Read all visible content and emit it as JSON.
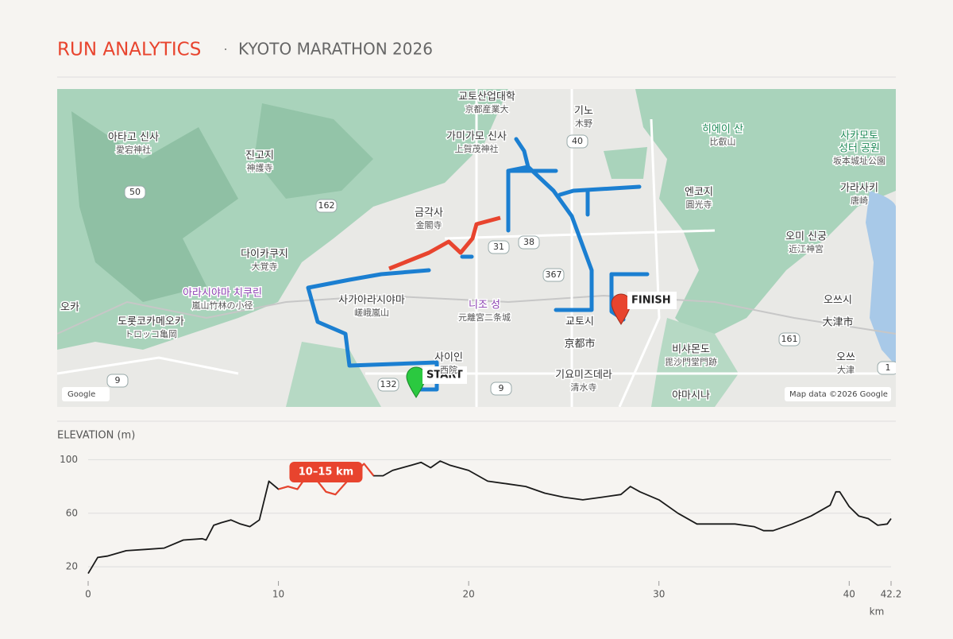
{
  "header": {
    "title": "RUN ANALYTICS",
    "separator": "·",
    "subtitle": "KYOTO MARATHON 2026"
  },
  "map": {
    "labels": [
      {
        "lines": [
          "교토산업대학",
          "京都産業大"
        ]
      },
      {
        "lines": [
          "기노",
          "木野"
        ]
      },
      {
        "lines": [
          "가미가모 신사",
          "上賀茂神社"
        ]
      },
      {
        "lines": [
          "아타고 신사",
          "愛宕神社"
        ]
      },
      {
        "lines": [
          "진고지",
          "神護寺"
        ]
      },
      {
        "lines": [
          "금각사",
          "金閣寺"
        ]
      },
      {
        "lines": [
          "다이카쿠지",
          "大覚寺"
        ]
      },
      {
        "lines": [
          "아라시야마 치쿠린",
          "嵐山竹林の小径"
        ]
      },
      {
        "lines": [
          "사가아라시야마",
          "嵯峨嵐山"
        ]
      },
      {
        "lines": [
          "니조 성",
          "元離宮二条城"
        ]
      },
      {
        "lines": [
          "교토시",
          "京都市"
        ]
      },
      {
        "lines": [
          "히에이 산",
          "比叡山"
        ]
      },
      {
        "lines": [
          "사카모토",
          "성터 공원",
          "坂本城址公園"
        ]
      },
      {
        "lines": [
          "엔코지",
          "圓光寺"
        ]
      },
      {
        "lines": [
          "가라사키",
          "唐崎"
        ]
      },
      {
        "lines": [
          "오미 신궁",
          "近江神宮"
        ]
      },
      {
        "lines": [
          "오쓰시",
          "大津市"
        ]
      },
      {
        "lines": [
          "비샤몬도",
          "毘沙門堂門跡"
        ]
      },
      {
        "lines": [
          "오쓰",
          "大津"
        ]
      },
      {
        "lines": [
          "기요미즈데라",
          "清水寺"
        ]
      },
      {
        "lines": [
          "사이인",
          "西院"
        ]
      },
      {
        "lines": [
          "도롯코카메오카",
          "トロッコ亀岡"
        ]
      },
      {
        "lines": [
          "야마시나"
        ]
      },
      {
        "lines": [
          "오카"
        ]
      }
    ],
    "roads": [
      "50",
      "162",
      "40",
      "38",
      "31",
      "367",
      "161",
      "9",
      "132",
      "9",
      "1"
    ],
    "start": "START",
    "finish": "FINISH",
    "attribution_left": "Google",
    "attribution_right": "Map data ©2026 Google"
  },
  "chart_data": {
    "type": "line",
    "ylabel": "ELEVATION (m)",
    "xlabel": "km",
    "color": "#1a1a1a",
    "x": [
      0,
      0.5,
      1,
      2,
      3,
      4,
      5,
      6,
      6.2,
      6.6,
      7,
      7.5,
      8,
      8.5,
      9,
      9.5,
      10,
      10.5,
      11,
      11.5,
      12,
      12.5,
      13,
      13.5,
      14,
      14.5,
      15,
      15.5,
      16,
      17,
      17.5,
      18,
      18.5,
      19,
      20,
      20.5,
      21,
      22,
      23,
      24,
      25,
      26,
      27,
      28,
      28.5,
      29,
      30,
      31,
      32,
      33,
      34,
      35,
      35.5,
      36,
      37,
      38,
      39,
      39.3,
      39.5,
      40,
      40.5,
      41,
      41.5,
      42,
      42.2
    ],
    "values": [
      15,
      27,
      28,
      32,
      33,
      34,
      40,
      41,
      40,
      51,
      53,
      55,
      52,
      50,
      55,
      84,
      78,
      80,
      78,
      88,
      85,
      76,
      74,
      82,
      90,
      97,
      88,
      88,
      92,
      96,
      98,
      94,
      99,
      96,
      92,
      88,
      84,
      82,
      80,
      75,
      72,
      70,
      72,
      74,
      80,
      76,
      70,
      60,
      52,
      52,
      52,
      50,
      47,
      47,
      52,
      58,
      66,
      76,
      76,
      65,
      58,
      56,
      51,
      52,
      56
    ],
    "xlim": [
      0,
      42.2
    ],
    "ylim": [
      10,
      105
    ],
    "xticks": [
      0,
      10,
      20,
      30,
      40,
      42.2
    ],
    "yticks": [
      20,
      60,
      100
    ],
    "grid": true,
    "highlight": {
      "range": [
        10,
        15
      ],
      "label": "10–15 km",
      "color": "#e8442e"
    }
  }
}
